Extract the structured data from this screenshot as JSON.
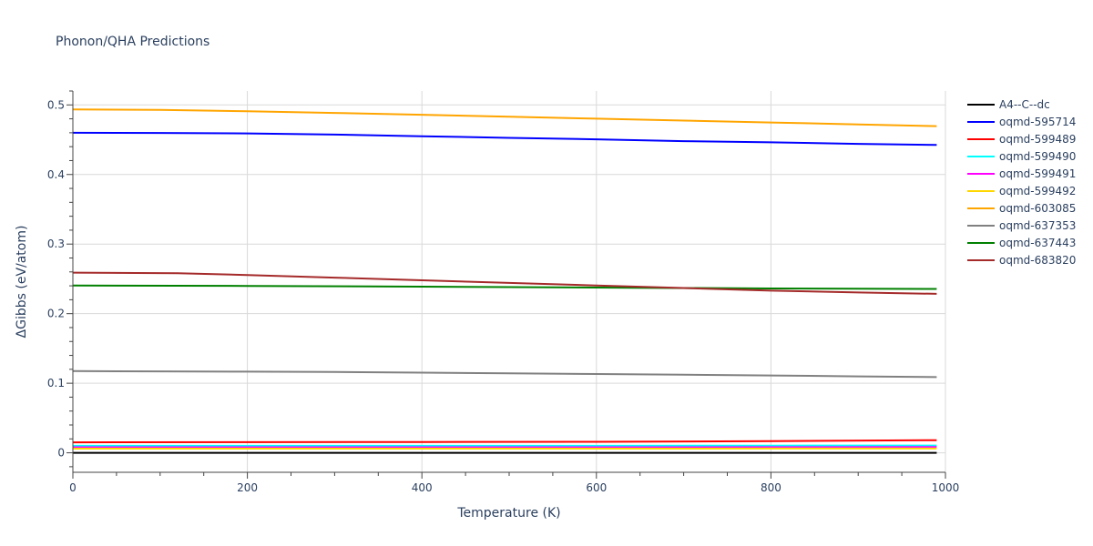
{
  "chart_data": {
    "type": "line",
    "title": "Phonon/QHA Predictions",
    "xlabel": "Temperature (K)",
    "ylabel": "ΔGibbs (eV/atom)",
    "xlim": [
      0,
      1000
    ],
    "ylim": [
      -0.028,
      0.52
    ],
    "x_ticks": [
      0,
      200,
      400,
      600,
      800,
      1000
    ],
    "x_tick_labels": [
      "0",
      "200",
      "400",
      "600",
      "800",
      "1000"
    ],
    "y_ticks": [
      0,
      0.1,
      0.2,
      0.3,
      0.4,
      0.5
    ],
    "y_tick_labels": [
      "0",
      "0.1",
      "0.2",
      "0.3",
      "0.4",
      "0.5"
    ],
    "x_minor_step": 50,
    "y_minor_step": 0.02,
    "grid": true,
    "legend_position": "right",
    "series": [
      {
        "name": "A4--C--dc",
        "color": "#000000",
        "x": [
          0,
          200,
          400,
          600,
          800,
          990
        ],
        "y": [
          0,
          0,
          0,
          0,
          0,
          0
        ]
      },
      {
        "name": "oqmd-595714",
        "color": "#0000ff",
        "x": [
          0,
          100,
          200,
          300,
          400,
          500,
          600,
          700,
          800,
          900,
          990
        ],
        "y": [
          0.46,
          0.4597,
          0.459,
          0.4573,
          0.455,
          0.4527,
          0.4505,
          0.448,
          0.4463,
          0.444,
          0.4425
        ]
      },
      {
        "name": "oqmd-599489",
        "color": "#ff0000",
        "x": [
          0,
          200,
          400,
          600,
          800,
          990
        ],
        "y": [
          0.015,
          0.0153,
          0.0155,
          0.0158,
          0.0167,
          0.0182
        ]
      },
      {
        "name": "oqmd-599490",
        "color": "#00ffff",
        "x": [
          0,
          200,
          400,
          600,
          800,
          990
        ],
        "y": [
          0.01,
          0.01,
          0.01,
          0.0101,
          0.0103,
          0.0105
        ]
      },
      {
        "name": "oqmd-599491",
        "color": "#ff00ff",
        "x": [
          0,
          200,
          400,
          600,
          800,
          990
        ],
        "y": [
          0.008,
          0.008,
          0.008,
          0.008,
          0.0081,
          0.0082
        ]
      },
      {
        "name": "oqmd-599492",
        "color": "#ffd700",
        "x": [
          0,
          200,
          400,
          600,
          800,
          990
        ],
        "y": [
          0.006,
          0.006,
          0.006,
          0.006,
          0.0061,
          0.0062
        ]
      },
      {
        "name": "oqmd-603085",
        "color": "#ffa500",
        "x": [
          0,
          100,
          200,
          300,
          400,
          500,
          600,
          700,
          800,
          900,
          990
        ],
        "y": [
          0.4935,
          0.4928,
          0.491,
          0.4885,
          0.4858,
          0.483,
          0.4802,
          0.4775,
          0.4747,
          0.472,
          0.4695
        ]
      },
      {
        "name": "oqmd-637353",
        "color": "#808080",
        "x": [
          0,
          100,
          200,
          300,
          400,
          500,
          600,
          700,
          800,
          900,
          990
        ],
        "y": [
          0.1175,
          0.117,
          0.1167,
          0.1162,
          0.1152,
          0.1142,
          0.1132,
          0.1122,
          0.1112,
          0.1098,
          0.1088
        ]
      },
      {
        "name": "oqmd-637443",
        "color": "#008000",
        "x": [
          0,
          200,
          400,
          600,
          800,
          990
        ],
        "y": [
          0.2405,
          0.2398,
          0.2388,
          0.2375,
          0.2362,
          0.2355
        ]
      },
      {
        "name": "oqmd-683820",
        "color": "#a52a2a",
        "x": [
          0,
          120,
          200,
          300,
          400,
          500,
          600,
          700,
          800,
          900,
          990
        ],
        "y": [
          0.259,
          0.258,
          0.2555,
          0.2518,
          0.248,
          0.2442,
          0.2405,
          0.2368,
          0.233,
          0.2305,
          0.2285
        ]
      }
    ]
  }
}
